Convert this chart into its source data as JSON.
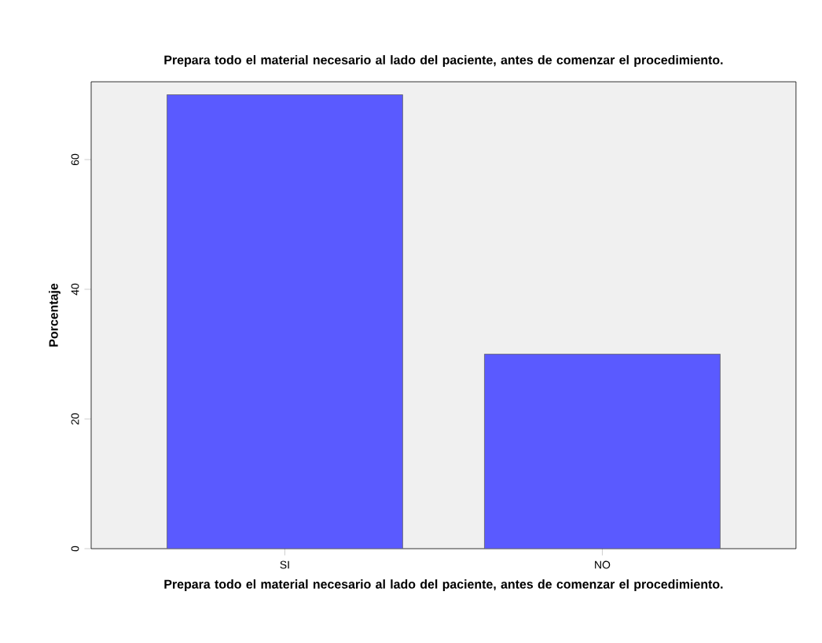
{
  "chart_data": {
    "type": "bar",
    "title": "Prepara todo el material necesario al lado del paciente, antes de comenzar el procedimiento.",
    "xlabel": "Prepara todo el material necesario al lado del paciente, antes de comenzar el procedimiento.",
    "ylabel": "Porcentaje",
    "categories": [
      "SI",
      "NO"
    ],
    "values": [
      70,
      30
    ],
    "color": "#5a5aff",
    "ylim": [
      0,
      72
    ],
    "yticks": [
      0,
      20,
      40,
      60
    ],
    "grid": false
  }
}
